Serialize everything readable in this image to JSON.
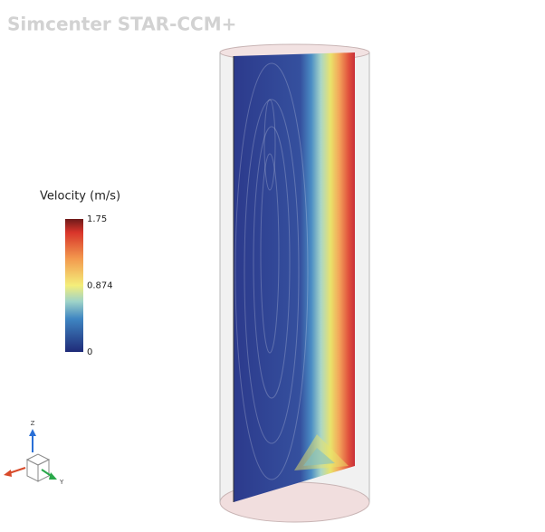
{
  "header": {
    "title": "Simcenter STAR-CCM+"
  },
  "legend": {
    "title": "Velocity (m/s)",
    "ticks": [
      1.75,
      0.874,
      0
    ]
  },
  "triad": {
    "z": "Z",
    "y": "Y"
  }
}
